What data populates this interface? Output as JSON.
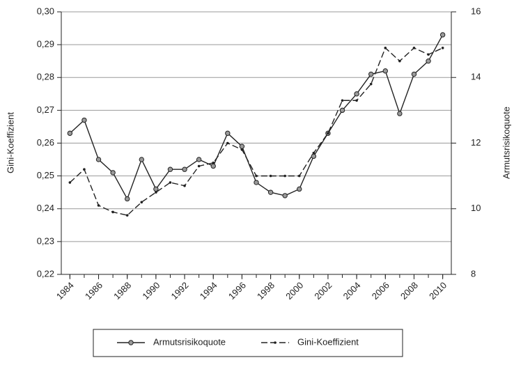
{
  "chart_data": {
    "type": "line",
    "x": [
      1984,
      1985,
      1986,
      1987,
      1988,
      1989,
      1990,
      1991,
      1992,
      1993,
      1994,
      1995,
      1996,
      1997,
      1998,
      1999,
      2000,
      2001,
      2002,
      2003,
      2004,
      2005,
      2006,
      2007,
      2008,
      2009,
      2010
    ],
    "xlim": [
      1983.4,
      2010.6
    ],
    "xticks": [
      1984,
      1986,
      1988,
      1990,
      1992,
      1994,
      1996,
      1998,
      2000,
      2002,
      2004,
      2006,
      2008,
      2010
    ],
    "ylabel": "Gini-Koeffizient",
    "y2label": "Armutsrisikoquote",
    "ylim": [
      0.22,
      0.3
    ],
    "yticks": [
      {
        "value": 0.22,
        "label": "0,22"
      },
      {
        "value": 0.23,
        "label": "0,23"
      },
      {
        "value": 0.24,
        "label": "0,24"
      },
      {
        "value": 0.25,
        "label": "0,25"
      },
      {
        "value": 0.26,
        "label": "0,26"
      },
      {
        "value": 0.27,
        "label": "0,27"
      },
      {
        "value": 0.28,
        "label": "0,28"
      },
      {
        "value": 0.29,
        "label": "0,29"
      },
      {
        "value": 0.3,
        "label": "0,30"
      }
    ],
    "y2lim": [
      8,
      16
    ],
    "y2ticks": [
      8,
      10,
      12,
      14,
      16
    ],
    "grid": true,
    "legend": "bottom",
    "series": [
      {
        "name": "Armutsrisikoquote",
        "color": "#222222",
        "axis": "y2",
        "linestyle": "solid",
        "marker": "circle",
        "values": [
          12.3,
          12.7,
          11.5,
          11.1,
          10.3,
          11.5,
          10.6,
          11.2,
          11.2,
          11.5,
          11.3,
          12.3,
          11.9,
          10.8,
          10.5,
          10.4,
          10.6,
          11.6,
          12.3,
          13.0,
          13.5,
          14.1,
          14.2,
          12.9,
          14.1,
          14.5,
          15.3
        ]
      },
      {
        "name": "Gini-Koeffizient",
        "color": "#222222",
        "axis": "y",
        "linestyle": "dashed",
        "marker": "dot",
        "values": [
          0.248,
          0.252,
          0.241,
          0.239,
          0.238,
          0.242,
          0.245,
          0.248,
          0.247,
          0.253,
          0.254,
          0.26,
          0.258,
          0.25,
          0.25,
          0.25,
          0.25,
          0.257,
          0.263,
          0.273,
          0.273,
          0.278,
          0.289,
          0.285,
          0.289,
          0.287,
          0.289
        ]
      }
    ]
  }
}
